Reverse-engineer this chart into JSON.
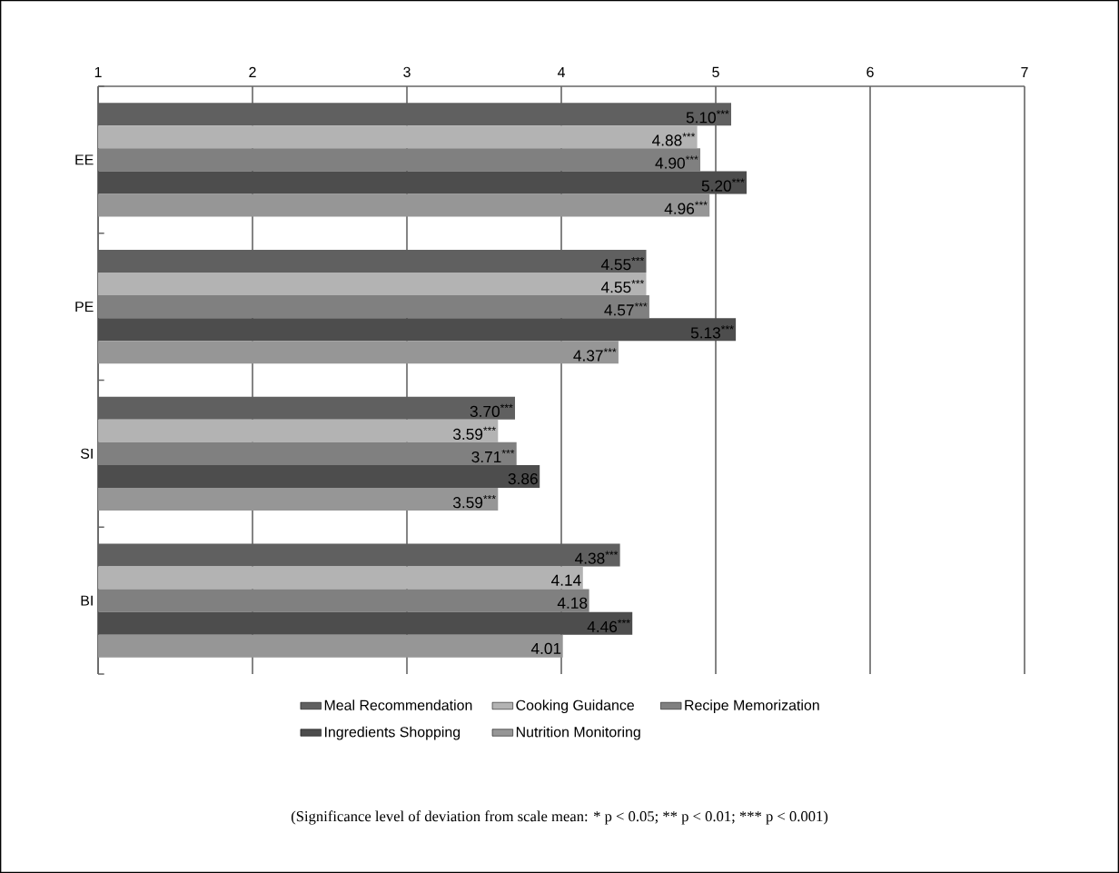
{
  "chart_data": {
    "type": "bar",
    "orientation": "horizontal",
    "categories": [
      "EE",
      "PE",
      "SI",
      "BI"
    ],
    "xlim": [
      1,
      7
    ],
    "xticks": [
      1,
      2,
      3,
      4,
      5,
      6,
      7
    ],
    "grid": "x",
    "legend": "bottom",
    "series": [
      {
        "name": "Meal Recommendation",
        "color": "#606060",
        "values": [
          5.1,
          4.55,
          3.7,
          4.38
        ],
        "value_labels": [
          "5.10$^{***}$",
          "4.55$^{***}$",
          "3.70$^{***}$",
          "4.38$^{***}$"
        ]
      },
      {
        "name": "Cooking Guidance",
        "color": "#b3b3b3",
        "values": [
          4.88,
          4.55,
          3.59,
          4.14
        ],
        "value_labels": [
          "4.88$^{***}$",
          "4.55$^{***}$",
          "3.59$^{***}$",
          "4.14"
        ]
      },
      {
        "name": "Recipe Memorization",
        "color": "#808080",
        "values": [
          4.9,
          4.57,
          3.71,
          4.18
        ],
        "value_labels": [
          "4.90$^{***}$",
          "4.57$^{***}$",
          "3.71$^{***}$",
          "4.18"
        ]
      },
      {
        "name": "Ingredients Shopping",
        "color": "#4d4d4d",
        "values": [
          5.2,
          5.13,
          3.86,
          4.46
        ],
        "value_labels": [
          "5.20$^{***}$",
          "5.13$^{***}$",
          "3.86",
          "4.46$^{***}$"
        ]
      },
      {
        "name": "Nutrition Monitoring",
        "color": "#969696",
        "values": [
          4.96,
          4.37,
          3.59,
          4.01
        ],
        "value_labels": [
          "4.96$^{***}$",
          "4.37$^{***}$",
          "3.59$^{***}$",
          "4.01"
        ]
      }
    ],
    "annotations": [
      "(Significance level of deviation from scale mean: * p < 0.05; ** p < 0.01; *** p < 0.001)"
    ]
  }
}
